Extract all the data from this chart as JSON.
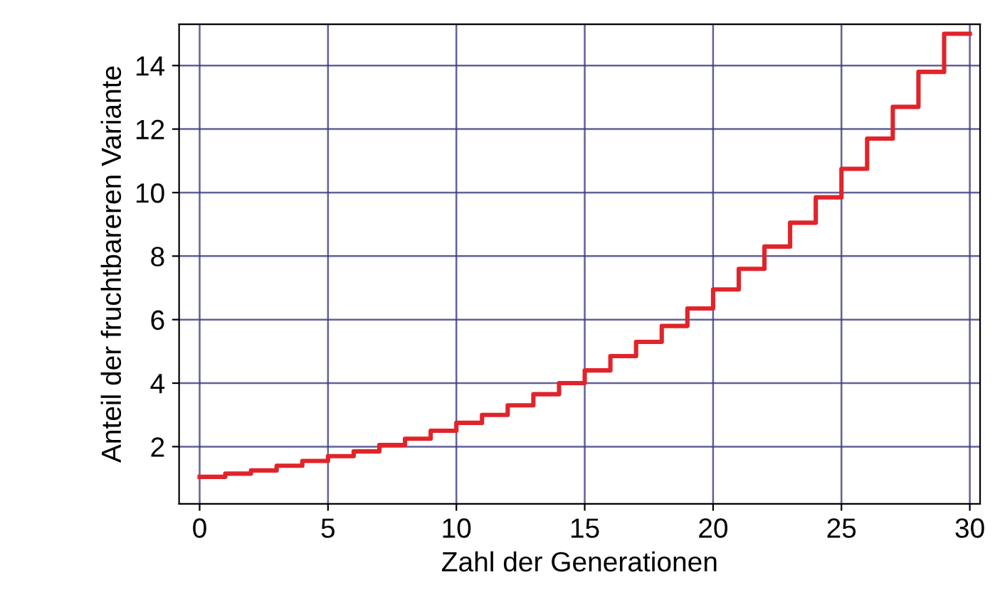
{
  "chart_data": {
    "type": "step",
    "xlabel": "Zahl der Generationen",
    "ylabel": "Anteil der fruchtbareren Variante",
    "x": [
      0,
      1,
      2,
      3,
      4,
      5,
      6,
      7,
      8,
      9,
      10,
      11,
      12,
      13,
      14,
      15,
      16,
      17,
      18,
      19,
      20,
      21,
      22,
      23,
      24,
      25,
      26,
      27,
      28,
      29,
      30
    ],
    "series": [
      {
        "color": "#e0242a",
        "values": [
          1.05,
          1.15,
          1.25,
          1.4,
          1.55,
          1.7,
          1.85,
          2.05,
          2.25,
          2.5,
          2.75,
          3.0,
          3.3,
          3.65,
          4.0,
          4.4,
          4.85,
          5.3,
          5.8,
          6.35,
          6.95,
          7.6,
          8.3,
          9.05,
          9.85,
          10.75,
          11.7,
          12.7,
          13.8,
          15.0,
          15.0
        ]
      }
    ],
    "xlim": [
      -0.8,
      30.4
    ],
    "ylim": [
      0.2,
      15.3
    ],
    "xticks": [
      0,
      5,
      10,
      15,
      20,
      25,
      30
    ],
    "yticks": [
      2,
      4,
      6,
      8,
      10,
      12,
      14
    ],
    "grid": true,
    "line_style": "solid",
    "marker": "none"
  }
}
